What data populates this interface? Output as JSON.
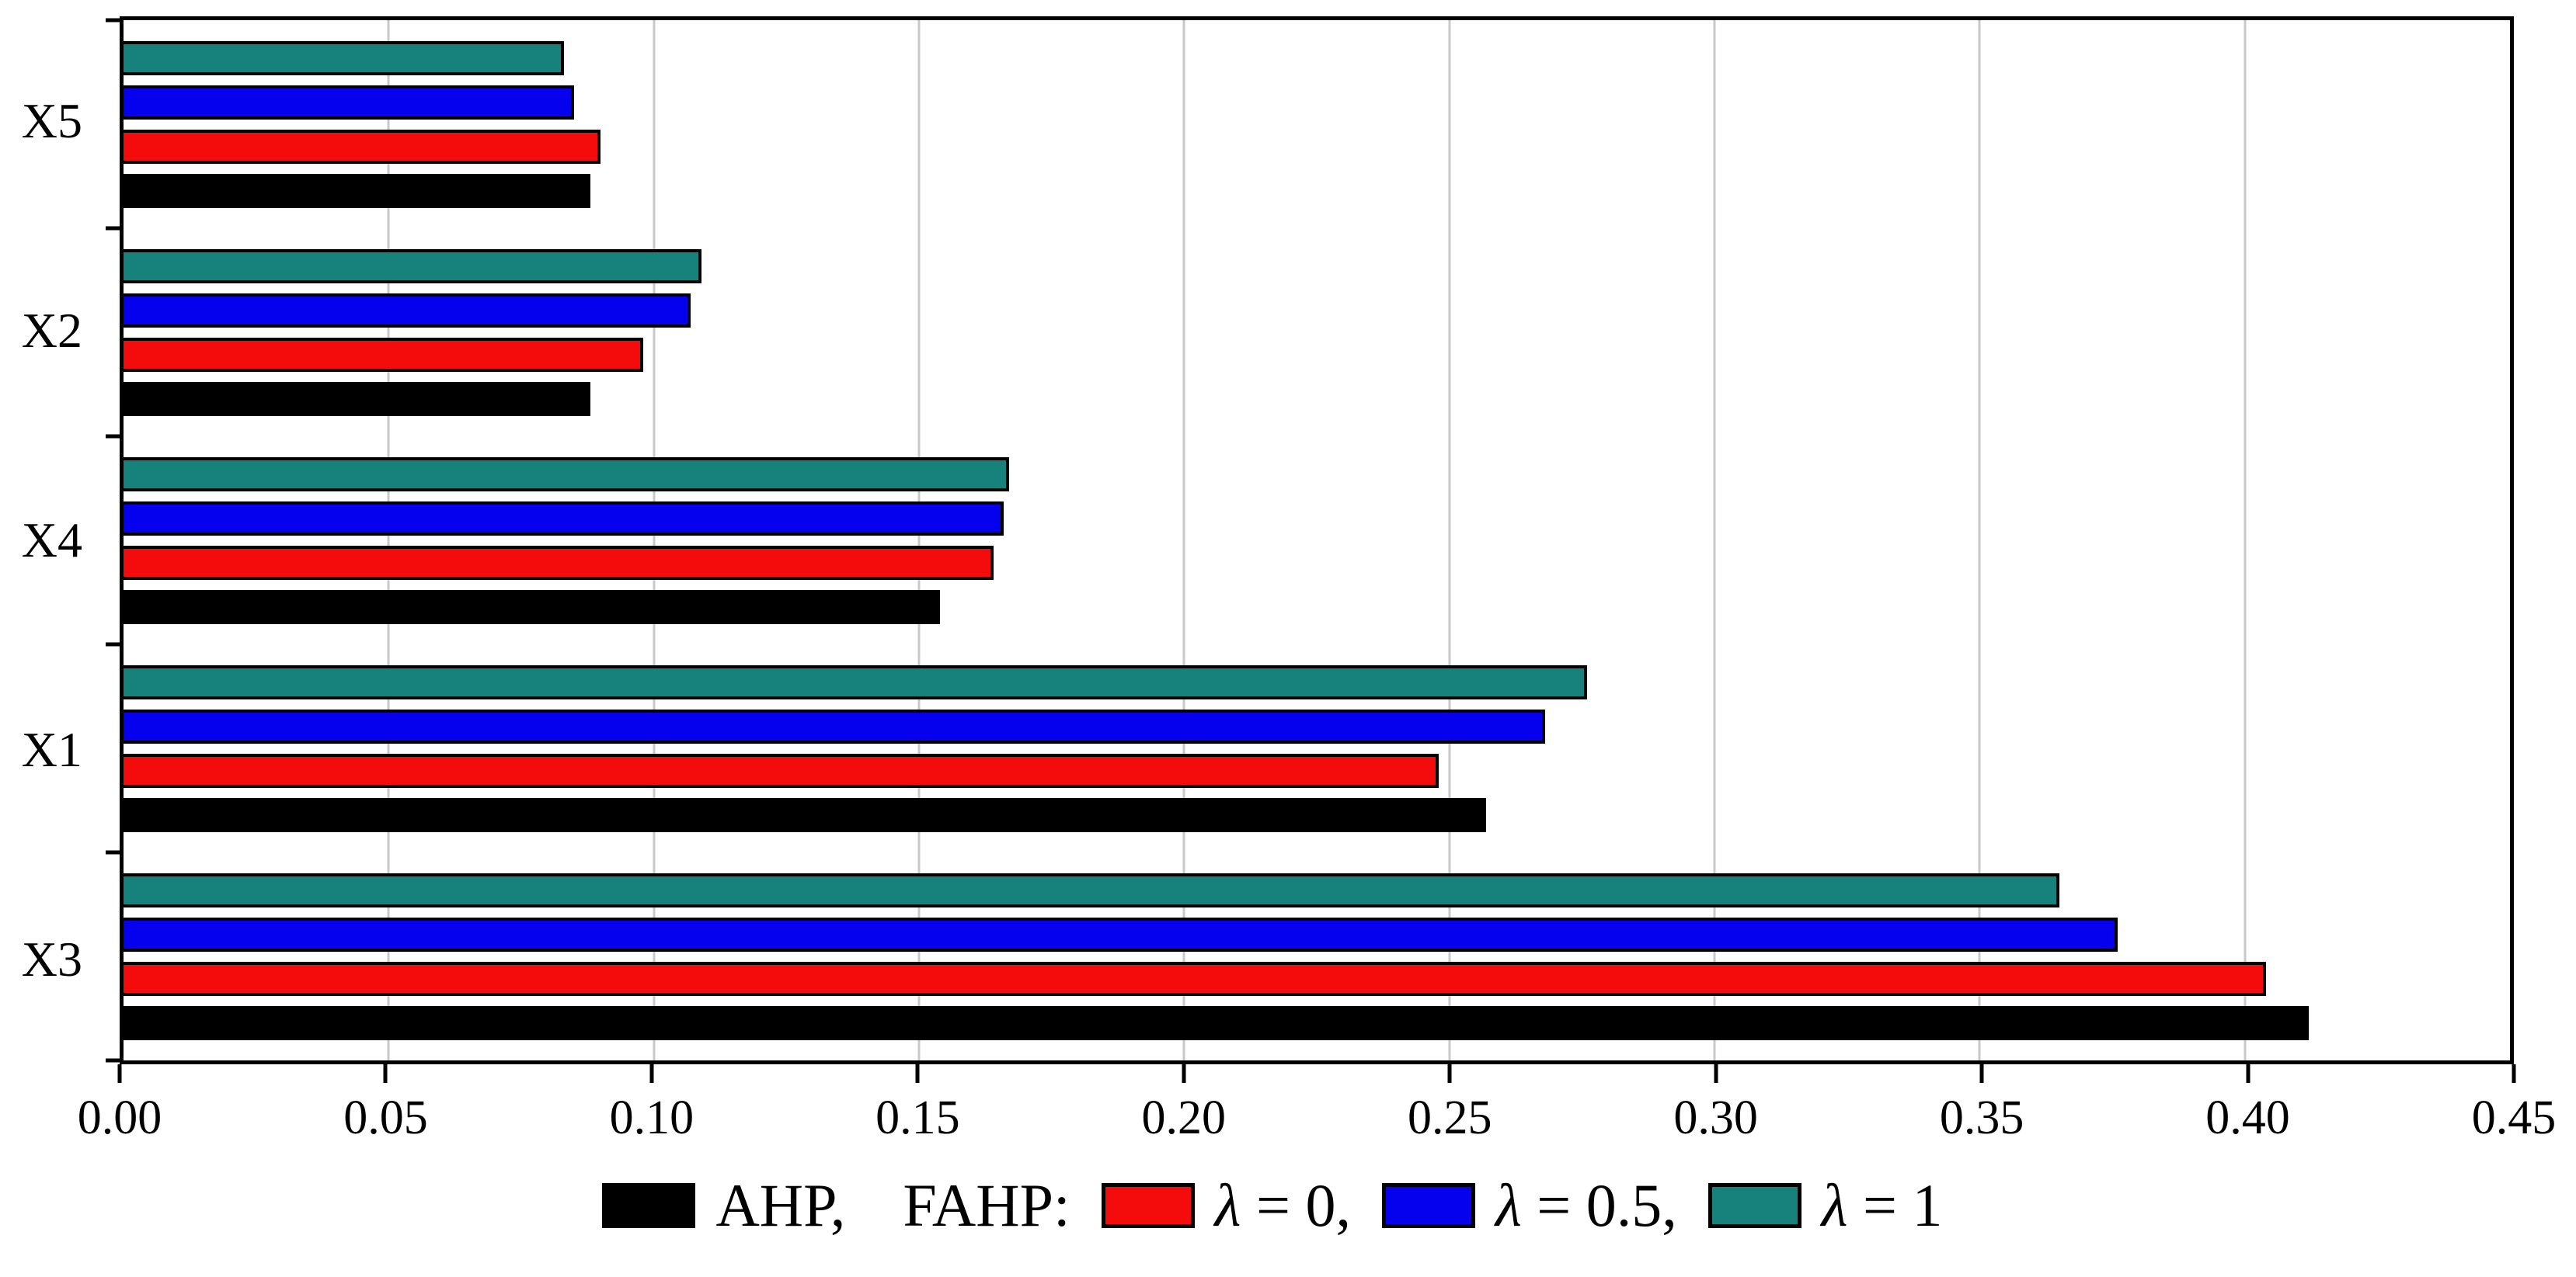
{
  "chart_data": {
    "type": "bar",
    "orientation": "horizontal",
    "title": "",
    "xlabel": "",
    "ylabel": "",
    "grid": "vertical",
    "legend_position": "bottom",
    "x_axis": {
      "min": 0,
      "max": 0.45,
      "step": 0.05,
      "tick_labels": [
        "0.00",
        "0.05",
        "0.10",
        "0.15",
        "0.20",
        "0.25",
        "0.30",
        "0.35",
        "0.40",
        "0.45"
      ]
    },
    "categories_top_to_bottom": [
      "X5",
      "X2",
      "X4",
      "X1",
      "X3"
    ],
    "bar_stack_order_bottom_to_top": [
      "AHP",
      "λ = 0",
      "λ = 0.5",
      "λ = 1"
    ],
    "series": [
      {
        "name": "AHP",
        "color": "#000000",
        "values": [
          0.088,
          0.088,
          0.154,
          0.257,
          0.412
        ]
      },
      {
        "name": "λ = 0",
        "color": "#f40b0b",
        "values": [
          0.09,
          0.098,
          0.164,
          0.248,
          0.404
        ]
      },
      {
        "name": "λ = 0.5",
        "color": "#0500ee",
        "values": [
          0.085,
          0.107,
          0.166,
          0.268,
          0.376
        ]
      },
      {
        "name": "λ = 1",
        "color": "#17827c",
        "values": [
          0.083,
          0.109,
          0.167,
          0.276,
          0.365
        ]
      }
    ],
    "legend_tokens": [
      {
        "type": "swatch",
        "series": "AHP",
        "color": "#000000"
      },
      {
        "type": "label",
        "text": "AHP,"
      },
      {
        "type": "label",
        "text": "FAHP:",
        "gap_before": true
      },
      {
        "type": "swatch",
        "series": "λ = 0",
        "color": "#f40b0b"
      },
      {
        "type": "label",
        "text": "λ = 0,"
      },
      {
        "type": "swatch",
        "series": "λ = 0.5",
        "color": "#0500ee"
      },
      {
        "type": "label",
        "text": "λ = 0.5,"
      },
      {
        "type": "swatch",
        "series": "λ = 1",
        "color": "#17827c"
      },
      {
        "type": "label",
        "text": "λ = 1"
      }
    ]
  },
  "colors": {
    "background": "#ffffff",
    "axis": "#000000",
    "gridline": "#c9c9c9"
  }
}
